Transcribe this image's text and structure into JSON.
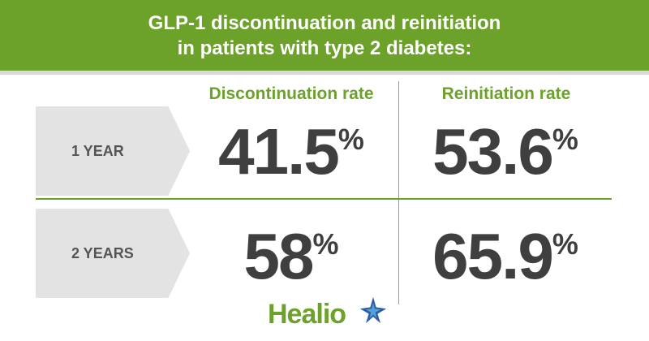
{
  "header": {
    "title_line1": "GLP-1 discontinuation and reinitiation",
    "title_line2": "in patients with type 2 diabetes:"
  },
  "columns": {
    "discontinuation": "Discontinuation rate",
    "reinitiation": "Reinitiation rate"
  },
  "rows": [
    {
      "label": "1 YEAR",
      "discontinuation": "41.5",
      "reinitiation": "53.6",
      "unit": "%"
    },
    {
      "label": "2 YEARS",
      "discontinuation": "58",
      "reinitiation": "65.9",
      "unit": "%"
    }
  ],
  "logo": {
    "text": "Healio",
    "icon": "star-icon"
  },
  "colors": {
    "accent": "#6ca12a",
    "label_bg": "#e3e3e3",
    "stat_text": "#3f3f3f"
  }
}
